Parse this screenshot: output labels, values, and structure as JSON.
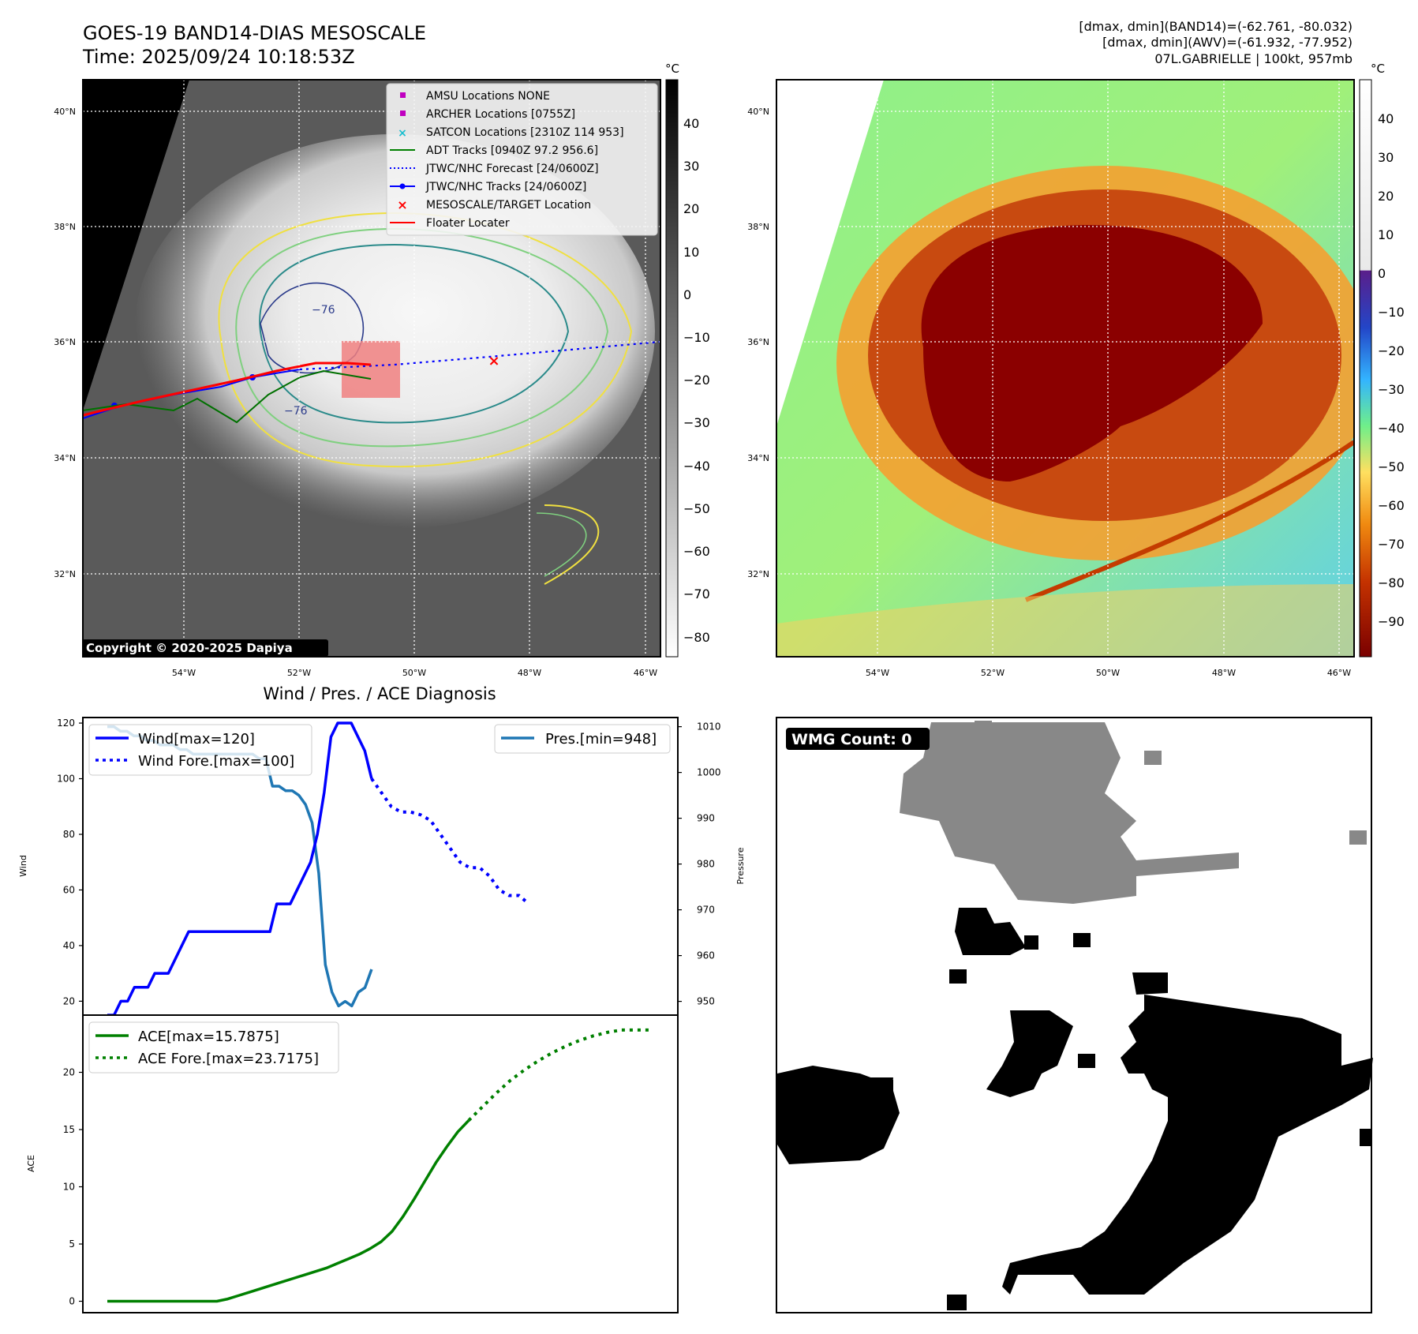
{
  "header": {
    "title_line1": "GOES-19 BAND14-DIAS MESOSCALE",
    "title_line2": "Time: 2025/09/24 10:18:53Z",
    "stats_line1": "[dmax, dmin](BAND14)=(-62.761, -80.032)",
    "stats_line2": "[dmax, dmin](AWV)=(-61.932, -77.952)",
    "stats_line3": "07L.GABRIELLE | 100kt, 957mb"
  },
  "map_axes": {
    "lat_labels": [
      "40°N",
      "38°N",
      "36°N",
      "34°N",
      "32°N"
    ],
    "lon_labels": [
      "54°W",
      "52°W",
      "50°W",
      "48°W",
      "46°W"
    ]
  },
  "ir_panel": {
    "colorbar_unit": "°C",
    "colorbar_ticks": [
      "40",
      "30",
      "20",
      "10",
      "0",
      "−10",
      "−20",
      "−30",
      "−40",
      "−50",
      "−60",
      "−70",
      "−80"
    ],
    "contour_label": "−76",
    "copyright": "Copyright © 2020-2025 Dapiya",
    "legend": [
      {
        "label": "AMSU Locations NONE",
        "marker": "square",
        "color": "#c000c0"
      },
      {
        "label": "ARCHER Locations [0755Z]",
        "marker": "square",
        "color": "#c000c0"
      },
      {
        "label": "SATCON Locations [2310Z 114 953]",
        "marker": "x",
        "color": "#17becf"
      },
      {
        "label": "ADT Tracks [0940Z 97.2 956.6]",
        "marker": "line",
        "color": "#008000"
      },
      {
        "label": "JTWC/NHC Forecast [24/0600Z]",
        "marker": "dotted",
        "color": "#0000ff"
      },
      {
        "label": "JTWC/NHC Tracks [24/0600Z]",
        "marker": "line-dot",
        "color": "#0000ff"
      },
      {
        "label": "MESOSCALE/TARGET Location",
        "marker": "x",
        "color": "#ff0000"
      },
      {
        "label": "Floater Locater",
        "marker": "line",
        "color": "#ff0000"
      }
    ]
  },
  "awv_panel": {
    "colorbar_unit": "°C",
    "colorbar_ticks": [
      "40",
      "30",
      "20",
      "10",
      "0",
      "−10",
      "−20",
      "−30",
      "−40",
      "−50",
      "−60",
      "−70",
      "−80",
      "−90"
    ]
  },
  "wmg_panel": {
    "badge": "WMG Count: 0"
  },
  "chart_data": [
    {
      "type": "line",
      "title": "Wind / Pres. / ACE Diagnosis",
      "xlabel": "",
      "ylabel": "Wind",
      "y2label": "Pressure",
      "ylim": [
        15,
        122
      ],
      "y2lim": [
        947,
        1012
      ],
      "yticks": [
        20,
        40,
        60,
        80,
        100,
        120
      ],
      "y2ticks": [
        950,
        960,
        970,
        980,
        990,
        1000,
        1010
      ],
      "series": [
        {
          "name": "Wind[max=120]",
          "axis": "left",
          "style": "solid",
          "color": "#0000ff",
          "values": [
            15,
            15,
            20,
            20,
            25,
            25,
            25,
            30,
            30,
            30,
            35,
            40,
            45,
            45,
            45,
            45,
            45,
            45,
            45,
            45,
            45,
            45,
            45,
            45,
            45,
            55,
            55,
            55,
            60,
            65,
            70,
            80,
            95,
            115,
            120,
            120,
            120,
            115,
            110,
            100
          ]
        },
        {
          "name": "Wind Fore.[max=100]",
          "axis": "left",
          "style": "dotted",
          "color": "#0000ff",
          "values": [
            100,
            95,
            90,
            88,
            88,
            87,
            85,
            80,
            75,
            70,
            68,
            68,
            65,
            60,
            58,
            58,
            55
          ]
        },
        {
          "name": "Pres.[min=948]",
          "axis": "right",
          "style": "solid",
          "color": "#1f77b4",
          "values": [
            1010,
            1010,
            1009,
            1009,
            1008,
            1008,
            1007,
            1007,
            1006,
            1006,
            1006,
            1005,
            1005,
            1004,
            1004,
            1004,
            1004,
            1004,
            1004,
            1004,
            1004,
            1004,
            1004,
            1003,
            1003,
            997,
            997,
            996,
            996,
            995,
            993,
            989,
            978,
            958,
            952,
            949,
            950,
            949,
            952,
            953,
            957
          ]
        }
      ]
    },
    {
      "type": "line",
      "xlabel": "",
      "ylabel": "ACE",
      "ylim": [
        -1,
        25
      ],
      "yticks": [
        0,
        5,
        10,
        15,
        20
      ],
      "series": [
        {
          "name": "ACE[max=15.7875]",
          "style": "solid",
          "color": "#008000",
          "values": [
            0,
            0,
            0,
            0,
            0,
            0,
            0,
            0,
            0,
            0,
            0,
            0.2,
            0.5,
            0.8,
            1.1,
            1.4,
            1.7,
            2.0,
            2.3,
            2.6,
            2.9,
            3.3,
            3.7,
            4.1,
            4.6,
            5.2,
            6.1,
            7.4,
            8.9,
            10.5,
            12.1,
            13.5,
            14.8,
            15.8
          ]
        },
        {
          "name": "ACE Fore.[max=23.7175]",
          "style": "dotted",
          "color": "#008000",
          "values": [
            15.8,
            17.0,
            18.2,
            19.3,
            20.2,
            21.0,
            21.7,
            22.3,
            22.8,
            23.2,
            23.5,
            23.7,
            23.7,
            23.7
          ]
        }
      ]
    }
  ]
}
